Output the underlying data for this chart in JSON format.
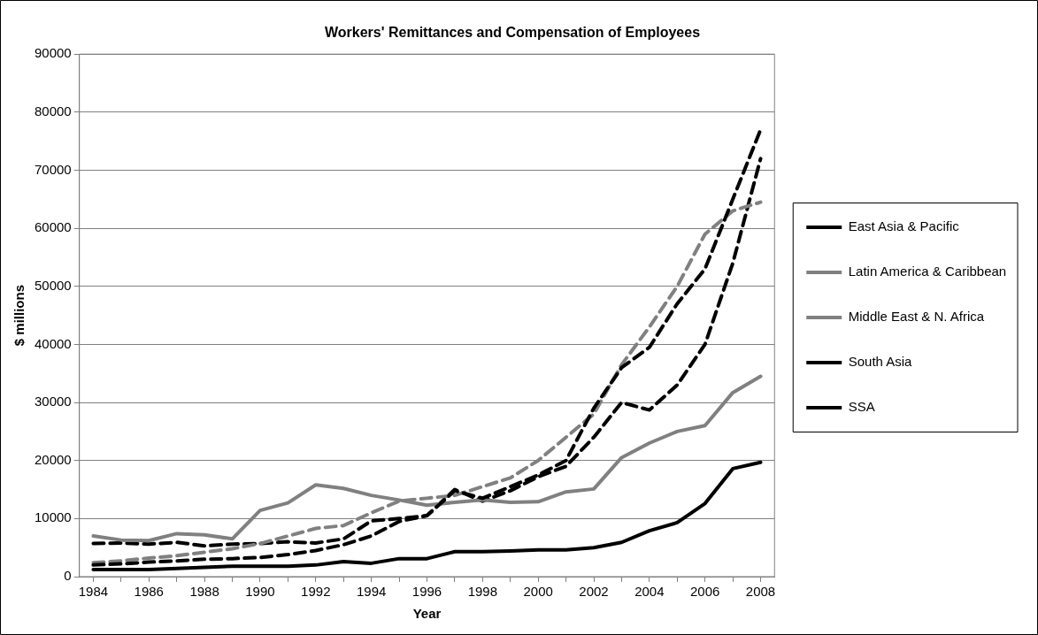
{
  "chart_data": {
    "type": "line",
    "title": "Workers' Remittances and Compensation of Employees",
    "xlabel": "Year",
    "ylabel": "$ millions",
    "x": [
      1984,
      1985,
      1986,
      1987,
      1988,
      1989,
      1990,
      1991,
      1992,
      1993,
      1994,
      1995,
      1996,
      1997,
      1998,
      1999,
      2000,
      2001,
      2002,
      2003,
      2004,
      2005,
      2006,
      2007,
      2008
    ],
    "xlim": [
      1983.5,
      2008.5
    ],
    "xticks": [
      1984,
      {
        "value": 1985,
        "label": null
      },
      1986,
      {
        "value": 1987,
        "label": null
      },
      1988,
      {
        "value": 1989,
        "label": null
      },
      1990,
      {
        "value": 1991,
        "label": null
      },
      1992,
      {
        "value": 1993,
        "label": null
      },
      1994,
      {
        "value": 1995,
        "label": null
      },
      1996,
      {
        "value": 1997,
        "label": null
      },
      1998,
      {
        "value": 1999,
        "label": null
      },
      2000,
      {
        "value": 2001,
        "label": null
      },
      2002,
      {
        "value": 2003,
        "label": null
      },
      2004,
      {
        "value": 2005,
        "label": null
      },
      2006,
      {
        "value": 2007,
        "label": null
      },
      2008
    ],
    "ylim": [
      0,
      90000
    ],
    "yticks": [
      0,
      10000,
      20000,
      30000,
      40000,
      50000,
      60000,
      70000,
      80000,
      90000
    ],
    "grid": "y",
    "legend": "right",
    "marker": "none",
    "series": [
      {
        "name": "East Asia & Pacific",
        "color": "#000000",
        "line_style": "dashed",
        "values": [
          2000,
          2200,
          2500,
          2700,
          3000,
          3100,
          3300,
          3800,
          4500,
          5500,
          7000,
          9500,
          10500,
          14800,
          13500,
          15500,
          17500,
          20000,
          29000,
          36000,
          39500,
          47000,
          53000,
          65000,
          77000
        ]
      },
      {
        "name": "Latin America & Caribbean",
        "color": "#808080",
        "line_style": "dashed",
        "values": [
          2400,
          2700,
          3200,
          3600,
          4200,
          4800,
          5700,
          7000,
          8300,
          8800,
          11000,
          13000,
          13500,
          14000,
          15500,
          17000,
          20000,
          24000,
          28000,
          36500,
          43000,
          50000,
          59000,
          63000,
          64500
        ]
      },
      {
        "name": "Middle East & N. Africa",
        "color": "#808080",
        "line_style": "solid",
        "values": [
          7000,
          6300,
          6200,
          7400,
          7200,
          6500,
          11400,
          12700,
          15800,
          15200,
          14000,
          13200,
          12300,
          12800,
          13200,
          12800,
          12900,
          14600,
          15100,
          20500,
          23000,
          25000,
          26000,
          31700,
          34500
        ]
      },
      {
        "name": "South Asia",
        "color": "#000000",
        "line_style": "dashed",
        "values": [
          5700,
          5800,
          5600,
          5900,
          5300,
          5600,
          5700,
          6000,
          5800,
          6500,
          9600,
          10000,
          10500,
          15000,
          13000,
          14800,
          17200,
          19000,
          24000,
          30000,
          28700,
          33000,
          40000,
          54000,
          72000
        ]
      },
      {
        "name": "SSA",
        "color": "#000000",
        "line_style": "solid",
        "values": [
          1200,
          1200,
          1200,
          1400,
          1600,
          1800,
          1800,
          1800,
          2000,
          2600,
          2300,
          3100,
          3100,
          4300,
          4300,
          4400,
          4600,
          4600,
          5000,
          5900,
          7900,
          9300,
          12600,
          18600,
          19700
        ]
      }
    ]
  }
}
